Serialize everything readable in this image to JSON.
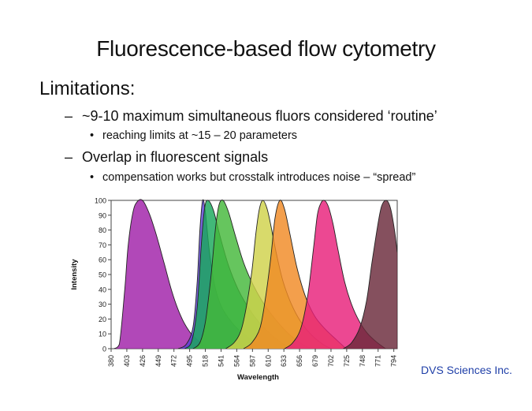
{
  "slide": {
    "title": "Fluorescence-based flow cytometry",
    "heading": "Limitations:",
    "bullets": [
      {
        "text": "~9-10 maximum simultaneous fluors considered ‘routine’",
        "sub": "reaching limits at ~15 – 20 parameters"
      },
      {
        "text": "Overlap in fluorescent signals",
        "sub": "compensation works but crosstalk introduces noise – “spread”"
      }
    ],
    "dash": "–",
    "bullet_char": "•",
    "credit": "DVS Sciences Inc."
  },
  "chart_data": {
    "type": "area",
    "xlabel": "Wavelength",
    "ylabel": "Intensity",
    "x_ticks": [
      "380",
      "403",
      "426",
      "449",
      "472",
      "495",
      "518",
      "541",
      "564",
      "587",
      "610",
      "633",
      "656",
      "679",
      "702",
      "725",
      "748",
      "771",
      "794"
    ],
    "xlim": [
      380,
      799
    ],
    "ylim": [
      0,
      100
    ],
    "y_ticks": [
      0,
      10,
      20,
      30,
      40,
      50,
      60,
      70,
      80,
      90,
      100
    ],
    "grid": false,
    "legend": "none",
    "series": [
      {
        "color": "#a020a8",
        "peak": 426,
        "points": [
          [
            384,
            0
          ],
          [
            392,
            3
          ],
          [
            400,
            40
          ],
          [
            405,
            70
          ],
          [
            412,
            92
          ],
          [
            418,
            99
          ],
          [
            426,
            100
          ],
          [
            436,
            91
          ],
          [
            446,
            77
          ],
          [
            458,
            57
          ],
          [
            470,
            37
          ],
          [
            482,
            22
          ],
          [
            494,
            12
          ],
          [
            506,
            6
          ],
          [
            516,
            2
          ],
          [
            524,
            0
          ]
        ]
      },
      {
        "color": "#5a42d4",
        "peak": 514,
        "points": [
          [
            478,
            0
          ],
          [
            490,
            3
          ],
          [
            500,
            15
          ],
          [
            506,
            45
          ],
          [
            510,
            80
          ],
          [
            514,
            100
          ],
          [
            518,
            92
          ],
          [
            524,
            65
          ],
          [
            532,
            42
          ],
          [
            542,
            28
          ],
          [
            558,
            17
          ],
          [
            574,
            10
          ],
          [
            590,
            5
          ],
          [
            606,
            2
          ],
          [
            618,
            0
          ]
        ]
      },
      {
        "color": "#18a85a",
        "peak": 522,
        "points": [
          [
            488,
            0
          ],
          [
            498,
            5
          ],
          [
            506,
            28
          ],
          [
            512,
            70
          ],
          [
            517,
            95
          ],
          [
            522,
            100
          ],
          [
            530,
            93
          ],
          [
            540,
            75
          ],
          [
            552,
            56
          ],
          [
            566,
            40
          ],
          [
            582,
            27
          ],
          [
            600,
            16
          ],
          [
            618,
            8
          ],
          [
            636,
            2
          ],
          [
            648,
            0
          ]
        ]
      },
      {
        "color": "#44b83a",
        "peak": 544,
        "points": [
          [
            500,
            0
          ],
          [
            510,
            4
          ],
          [
            518,
            18
          ],
          [
            526,
            48
          ],
          [
            533,
            82
          ],
          [
            538,
            97
          ],
          [
            544,
            100
          ],
          [
            552,
            92
          ],
          [
            562,
            76
          ],
          [
            574,
            58
          ],
          [
            588,
            43
          ],
          [
            604,
            30
          ],
          [
            622,
            19
          ],
          [
            640,
            10
          ],
          [
            660,
            3
          ],
          [
            672,
            0
          ]
        ]
      },
      {
        "color": "#d0d24a",
        "peak": 602,
        "points": [
          [
            548,
            0
          ],
          [
            560,
            4
          ],
          [
            570,
            12
          ],
          [
            578,
            28
          ],
          [
            586,
            52
          ],
          [
            592,
            78
          ],
          [
            597,
            94
          ],
          [
            602,
            100
          ],
          [
            608,
            95
          ],
          [
            614,
            83
          ],
          [
            622,
            64
          ],
          [
            632,
            45
          ],
          [
            644,
            30
          ],
          [
            658,
            18
          ],
          [
            674,
            9
          ],
          [
            690,
            3
          ],
          [
            702,
            0
          ]
        ]
      },
      {
        "color": "#f08a24",
        "peak": 627,
        "points": [
          [
            574,
            0
          ],
          [
            586,
            4
          ],
          [
            598,
            14
          ],
          [
            606,
            34
          ],
          [
            614,
            62
          ],
          [
            620,
            88
          ],
          [
            627,
            100
          ],
          [
            634,
            94
          ],
          [
            642,
            77
          ],
          [
            652,
            55
          ],
          [
            664,
            36
          ],
          [
            678,
            22
          ],
          [
            694,
            13
          ],
          [
            710,
            6
          ],
          [
            724,
            0
          ]
        ]
      },
      {
        "color": "#e8207a",
        "peak": 692,
        "points": [
          [
            634,
            0
          ],
          [
            646,
            4
          ],
          [
            658,
            14
          ],
          [
            668,
            36
          ],
          [
            676,
            66
          ],
          [
            682,
            90
          ],
          [
            687,
            98
          ],
          [
            692,
            100
          ],
          [
            698,
            96
          ],
          [
            705,
            84
          ],
          [
            713,
            65
          ],
          [
            722,
            45
          ],
          [
            732,
            30
          ],
          [
            744,
            18
          ],
          [
            756,
            10
          ],
          [
            770,
            4
          ],
          [
            782,
            0
          ]
        ]
      },
      {
        "color": "#6a2a3a",
        "peak": 783,
        "points": [
          [
            720,
            0
          ],
          [
            732,
            4
          ],
          [
            744,
            14
          ],
          [
            754,
            32
          ],
          [
            762,
            58
          ],
          [
            770,
            82
          ],
          [
            776,
            96
          ],
          [
            783,
            100
          ],
          [
            789,
            95
          ],
          [
            795,
            80
          ],
          [
            799,
            65
          ]
        ]
      }
    ],
    "overlap_colors": {
      "yellow": "#ffd22a",
      "orange": "#ffa020",
      "magenta": "#ff2a7c"
    }
  }
}
